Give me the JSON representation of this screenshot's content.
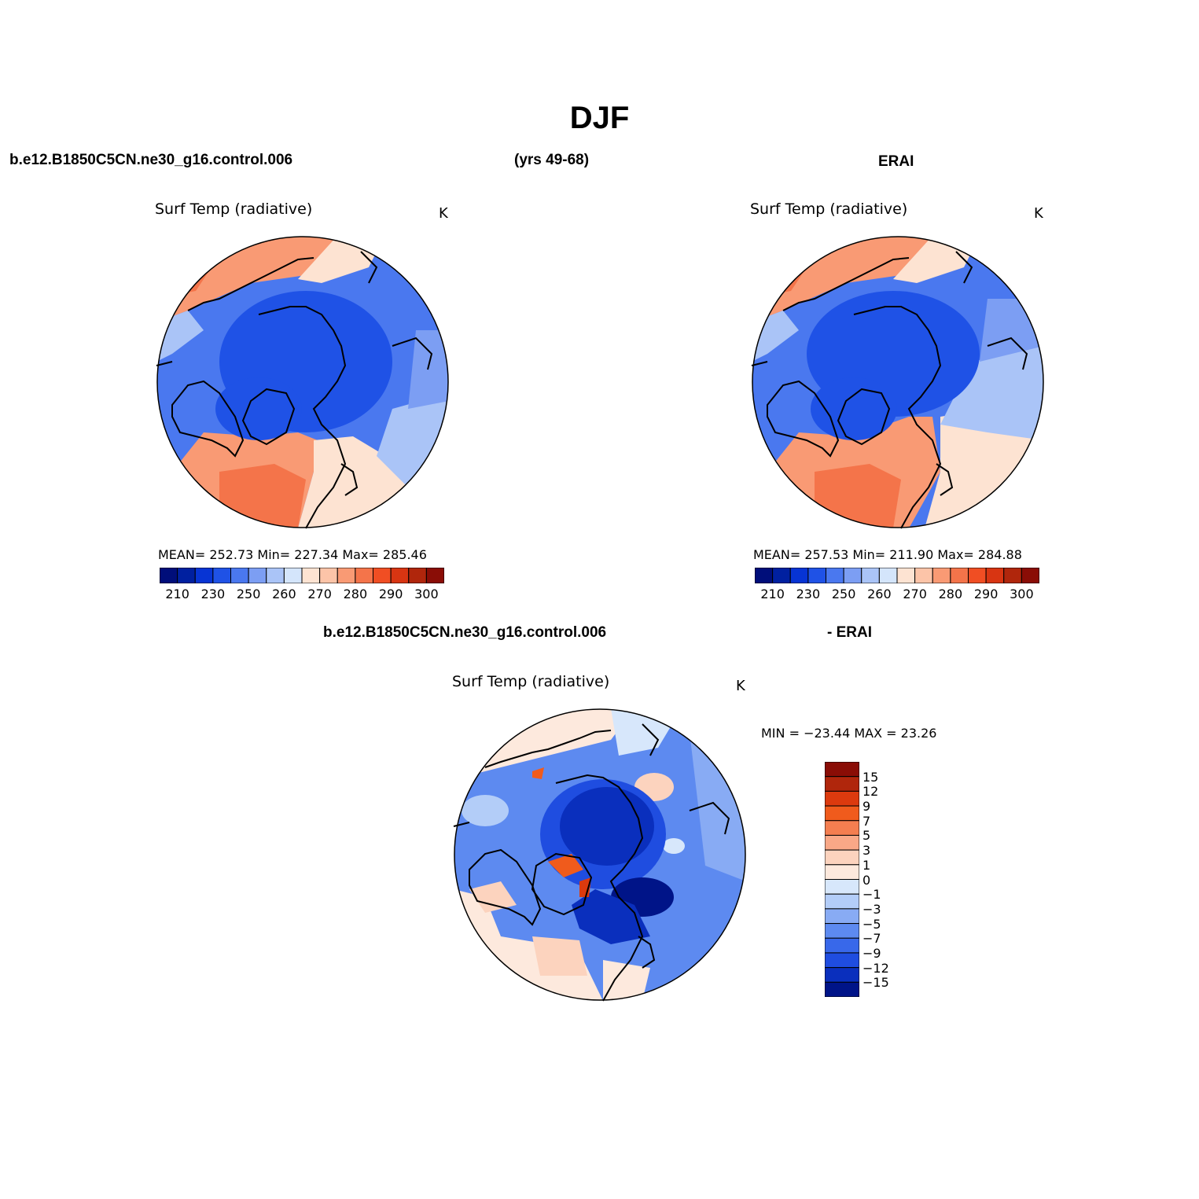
{
  "figure": {
    "title": "DJF",
    "case_name": "b.e12.B1850C5CN.ne30_g16.control.006",
    "years": "(yrs 49-68)",
    "obs_name": "ERAI",
    "diff_suffix": "- ERAI"
  },
  "panels": {
    "model": {
      "title": "Surf Temp (radiative)",
      "units": "K",
      "stats": "MEAN= 252.73   Min= 227.34   Max= 285.46"
    },
    "obs": {
      "title": "Surf Temp (radiative)",
      "units": "K",
      "stats": "MEAN= 257.53   Min= 211.90   Max= 284.88"
    },
    "diff": {
      "title": "Surf Temp (radiative)",
      "units": "K",
      "stats": "MIN = −23.44  MAX =  23.26"
    }
  },
  "colorbars": {
    "absolute": {
      "colors": [
        "#000e7a",
        "#0020a0",
        "#0734d4",
        "#1f52e6",
        "#4a78ef",
        "#7c9ef3",
        "#aac4f7",
        "#d4e5fb",
        "#fde3d2",
        "#fcc4a8",
        "#f99a74",
        "#f4744a",
        "#f04e23",
        "#d83512",
        "#b0260c",
        "#8a0d06"
      ],
      "tick_labels": [
        "210",
        "230",
        "250",
        "260",
        "270",
        "280",
        "290",
        "300"
      ]
    },
    "difference": {
      "colors": [
        "#8a0d06",
        "#b0260c",
        "#dc3a0e",
        "#f05b1c",
        "#f47e50",
        "#f9a887",
        "#fcd3be",
        "#fde9dd",
        "#d7e7fb",
        "#b3cdf8",
        "#88abf4",
        "#5d8af0",
        "#3868ea",
        "#1f4de0",
        "#0a2fbd",
        "#001488"
      ],
      "tick_labels": [
        "15",
        "12",
        "9",
        "7",
        "5",
        "3",
        "1",
        "0",
        "−1",
        "−3",
        "−5",
        "−7",
        "−9",
        "−12",
        "−15"
      ]
    }
  }
}
